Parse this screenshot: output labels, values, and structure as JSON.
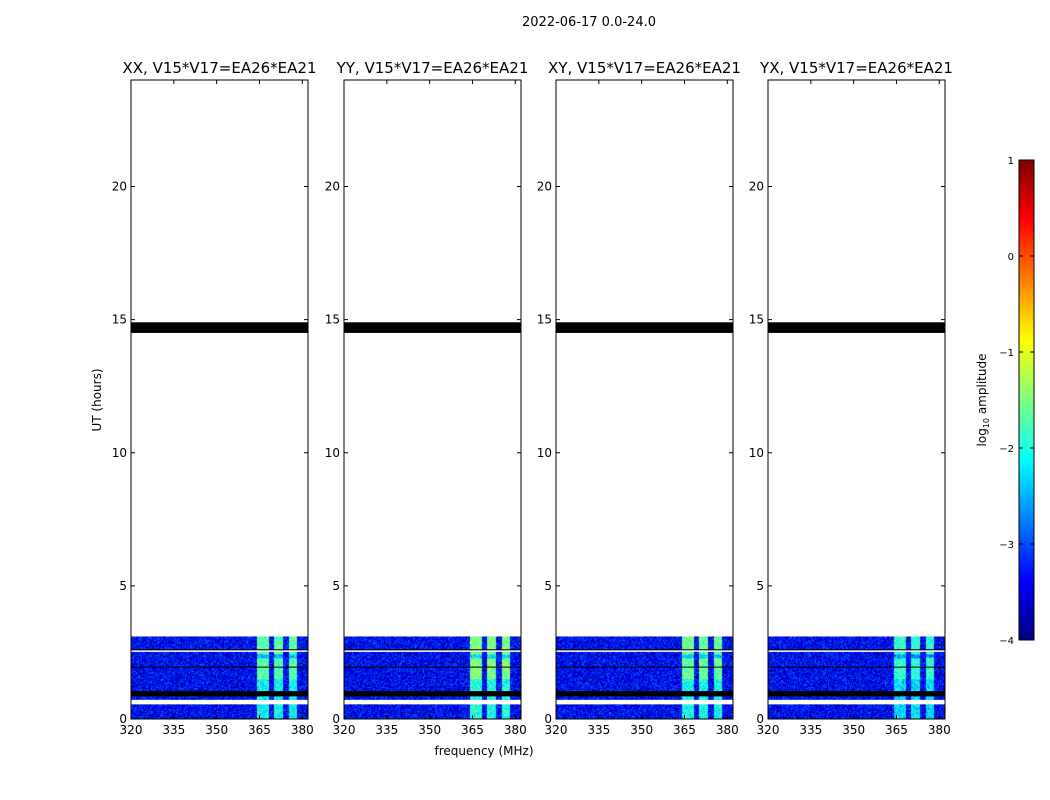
{
  "suptitle": "2022-06-17 0.0-24.0",
  "shared": {
    "ylabel": "UT (hours)",
    "xlabel": "frequency (MHz)",
    "xlim": [
      320,
      382
    ],
    "ylim": [
      0,
      24
    ],
    "xticks": [
      320,
      335,
      350,
      365,
      380
    ],
    "yticks": [
      0,
      5,
      10,
      15,
      20
    ]
  },
  "colorbar": {
    "label_prefix": "log",
    "label_sub": "10",
    "label_suffix": " amplitude",
    "range": [
      -4,
      1
    ],
    "ticks": [
      "1",
      "0",
      "−1",
      "−2",
      "−3",
      "−4"
    ],
    "colormap": [
      "#00007f",
      "#0000ff",
      "#007fff",
      "#00ffff",
      "#7fff7f",
      "#ffff00",
      "#ff7f00",
      "#ff0000",
      "#7f0000"
    ]
  },
  "chart_data": [
    {
      "type": "heatmap",
      "title": "XX, V15*V17=EA26*EA21",
      "data_hours": [
        0,
        3.1
      ],
      "bright_channels_MHz": [
        [
          364,
          368
        ],
        [
          370,
          373
        ],
        [
          375,
          378
        ]
      ],
      "bright_level_log10": -1.7,
      "background_level_log10": -3.4,
      "black_bands_hours": [
        [
          14.5,
          14.9
        ],
        [
          0.85,
          1.05
        ]
      ],
      "white_gaps_hours": [
        [
          2.52,
          2.58
        ],
        [
          0.55,
          0.72
        ]
      ]
    },
    {
      "type": "heatmap",
      "title": "YY, V15*V17=EA26*EA21",
      "data_hours": [
        0,
        3.1
      ],
      "bright_channels_MHz": [
        [
          364,
          368
        ],
        [
          370,
          373
        ],
        [
          375,
          378
        ]
      ],
      "bright_level_log10": -1.5,
      "background_level_log10": -3.4,
      "black_bands_hours": [
        [
          14.5,
          14.9
        ],
        [
          0.85,
          1.05
        ]
      ],
      "white_gaps_hours": [
        [
          2.52,
          2.58
        ],
        [
          0.55,
          0.72
        ]
      ]
    },
    {
      "type": "heatmap",
      "title": "XY, V15*V17=EA26*EA21",
      "data_hours": [
        0,
        3.1
      ],
      "bright_channels_MHz": [
        [
          364,
          368
        ],
        [
          370,
          373
        ],
        [
          375,
          378
        ]
      ],
      "bright_level_log10": -1.6,
      "background_level_log10": -3.4,
      "black_bands_hours": [
        [
          14.5,
          14.9
        ],
        [
          0.85,
          1.05
        ]
      ],
      "white_gaps_hours": [
        [
          2.52,
          2.58
        ],
        [
          0.55,
          0.72
        ]
      ]
    },
    {
      "type": "heatmap",
      "title": "YX, V15*V17=EA26*EA21",
      "data_hours": [
        0,
        3.1
      ],
      "bright_channels_MHz": [
        [
          364,
          368
        ],
        [
          370,
          373
        ],
        [
          375,
          378
        ]
      ],
      "bright_level_log10": -1.9,
      "background_level_log10": -3.4,
      "black_bands_hours": [
        [
          14.5,
          14.9
        ],
        [
          0.85,
          1.05
        ]
      ],
      "white_gaps_hours": [
        [
          2.52,
          2.58
        ],
        [
          0.55,
          0.72
        ]
      ]
    }
  ]
}
